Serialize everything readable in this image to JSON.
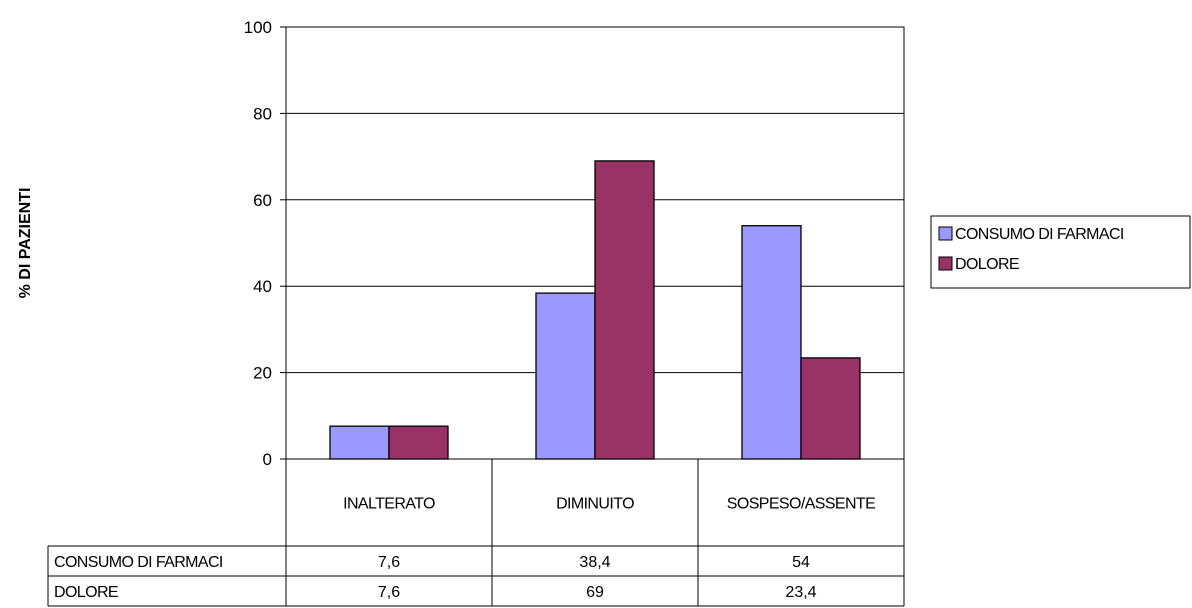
{
  "chart_data": {
    "type": "bar",
    "title": "",
    "xlabel": "",
    "ylabel": "% DI PAZIENTI",
    "ylim": [
      0,
      100
    ],
    "yticks": [
      0,
      20,
      40,
      60,
      80,
      100
    ],
    "grid": true,
    "legend_position": "right",
    "categories": [
      "INALTERATO",
      "DIMINUITO",
      "SOSPESO/ASSENTE"
    ],
    "series": [
      {
        "name": "CONSUMO DI FARMACI",
        "values": [
          7.6,
          38.4,
          54
        ],
        "labels": [
          "7,6",
          "38,4",
          "54"
        ],
        "color": "#9999ff"
      },
      {
        "name": "DOLORE",
        "values": [
          7.6,
          69,
          23.4
        ],
        "labels": [
          "7,6",
          "69",
          "23,4"
        ],
        "color": "#993366"
      }
    ]
  }
}
